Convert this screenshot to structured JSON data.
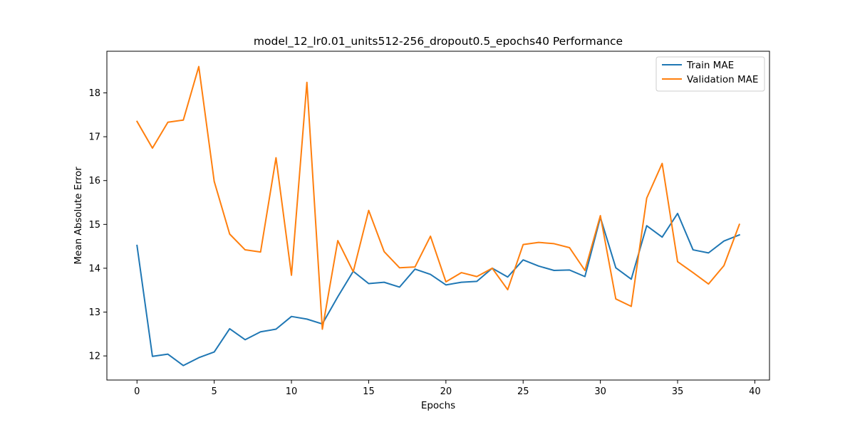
{
  "chart_data": {
    "type": "line",
    "title": "model_12_lr0.01_units512-256_dropout0.5_epochs40 Performance",
    "xlabel": "Epochs",
    "ylabel": "Mean Absolute Error",
    "xlim": [
      -1.95,
      40.95
    ],
    "ylim": [
      11.45,
      18.95
    ],
    "xticks": [
      0,
      5,
      10,
      15,
      20,
      25,
      30,
      35,
      40
    ],
    "yticks": [
      12,
      13,
      14,
      15,
      16,
      17,
      18
    ],
    "legend_position": "upper right",
    "grid": false,
    "x": [
      0,
      1,
      2,
      3,
      4,
      5,
      6,
      7,
      8,
      9,
      10,
      11,
      12,
      13,
      14,
      15,
      16,
      17,
      18,
      19,
      20,
      21,
      22,
      23,
      24,
      25,
      26,
      27,
      28,
      29,
      30,
      31,
      32,
      33,
      34,
      35,
      36,
      37,
      38,
      39
    ],
    "series": [
      {
        "name": "Train MAE",
        "color": "#1f77b4",
        "values": [
          14.52,
          11.99,
          12.04,
          11.78,
          11.96,
          12.09,
          12.62,
          12.37,
          12.55,
          12.61,
          12.9,
          12.84,
          12.73,
          13.35,
          13.93,
          13.65,
          13.68,
          13.57,
          13.98,
          13.86,
          13.62,
          13.68,
          13.7,
          14.0,
          13.8,
          14.19,
          14.05,
          13.95,
          13.96,
          13.81,
          15.16,
          14.01,
          13.75,
          14.97,
          14.71,
          15.25,
          14.42,
          14.35,
          14.62,
          14.76
        ]
      },
      {
        "name": "Validation MAE",
        "color": "#ff7f0e",
        "values": [
          17.35,
          16.74,
          17.33,
          17.38,
          18.6,
          15.98,
          14.78,
          14.42,
          14.37,
          16.52,
          13.84,
          18.24,
          12.61,
          14.63,
          13.92,
          15.32,
          14.38,
          14.01,
          14.03,
          14.73,
          13.69,
          13.9,
          13.81,
          14.0,
          13.51,
          14.54,
          14.59,
          14.56,
          14.47,
          13.95,
          15.2,
          13.3,
          13.13,
          15.6,
          16.39,
          14.15,
          13.9,
          13.64,
          14.06,
          15.0
        ]
      }
    ]
  }
}
